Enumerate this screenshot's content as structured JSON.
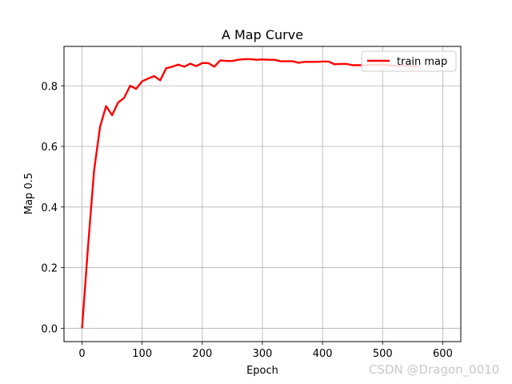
{
  "chart_data": {
    "type": "line",
    "title": "A Map Curve",
    "xlabel": "Epoch",
    "ylabel": "Map 0.5",
    "xlim": [
      -30,
      630
    ],
    "ylim": [
      -0.044,
      0.93
    ],
    "xticks": [
      0,
      100,
      200,
      300,
      400,
      500,
      600
    ],
    "yticks": [
      0.0,
      0.2,
      0.4,
      0.6,
      0.8
    ],
    "ytick_labels": [
      "0.0",
      "0.2",
      "0.4",
      "0.6",
      "0.8"
    ],
    "grid": true,
    "legend_position": "top-right",
    "series": [
      {
        "name": "train map",
        "color": "#ff0000",
        "x": [
          0,
          10,
          20,
          30,
          40,
          50,
          60,
          70,
          80,
          90,
          100,
          110,
          120,
          130,
          140,
          150,
          160,
          170,
          180,
          190,
          200,
          210,
          220,
          230,
          240,
          250,
          260,
          270,
          280,
          290,
          300,
          310,
          320,
          330,
          340,
          350,
          360,
          370,
          380,
          390,
          400,
          410,
          420,
          430,
          440,
          450,
          460,
          470,
          480,
          490,
          500,
          510,
          520,
          530,
          540,
          550,
          560
        ],
        "y": [
          0.0,
          0.27,
          0.52,
          0.665,
          0.733,
          0.703,
          0.745,
          0.76,
          0.8,
          0.79,
          0.815,
          0.824,
          0.832,
          0.818,
          0.858,
          0.863,
          0.87,
          0.863,
          0.873,
          0.865,
          0.875,
          0.875,
          0.863,
          0.884,
          0.882,
          0.882,
          0.886,
          0.888,
          0.888,
          0.886,
          0.887,
          0.886,
          0.886,
          0.881,
          0.881,
          0.881,
          0.876,
          0.879,
          0.879,
          0.879,
          0.88,
          0.88,
          0.871,
          0.872,
          0.872,
          0.868,
          0.868,
          0.868,
          0.87,
          0.868,
          0.87,
          0.868,
          0.866,
          0.867,
          0.866,
          0.865,
          0.865
        ]
      }
    ]
  },
  "watermark": "CSDN @Dragon_0010"
}
